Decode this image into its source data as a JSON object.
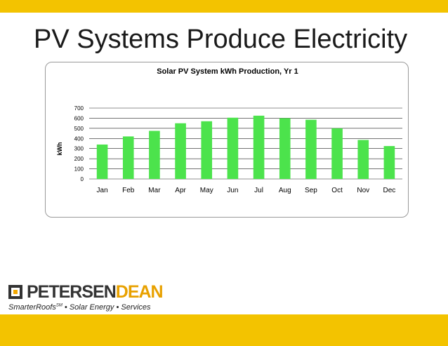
{
  "slide": {
    "title": "PV Systems Produce Electricity"
  },
  "logo": {
    "name_part1": "PETERSEN",
    "name_part2": "DEAN",
    "tagline": "SmarterRoofs",
    "tagline_mark": "SM",
    "tagline_rest": " •  Solar Energy  •  Services"
  },
  "colors": {
    "band": "#f3c300",
    "bar": "#4ce34c",
    "logo_accent": "#e8a100"
  },
  "chart_data": {
    "type": "bar",
    "title": "Solar PV System kWh Production, Yr 1",
    "xlabel": "",
    "ylabel": "kWh",
    "categories": [
      "Jan",
      "Feb",
      "Mar",
      "Apr",
      "May",
      "Jun",
      "Jul",
      "Aug",
      "Sep",
      "Oct",
      "Nov",
      "Dec"
    ],
    "values": [
      340,
      420,
      475,
      550,
      570,
      605,
      625,
      600,
      585,
      500,
      385,
      325
    ],
    "ylim": [
      0,
      700
    ],
    "yticks": [
      "0",
      "100",
      "200",
      "300",
      "400",
      "500",
      "600",
      "700"
    ],
    "grid": true,
    "legend": "none"
  }
}
